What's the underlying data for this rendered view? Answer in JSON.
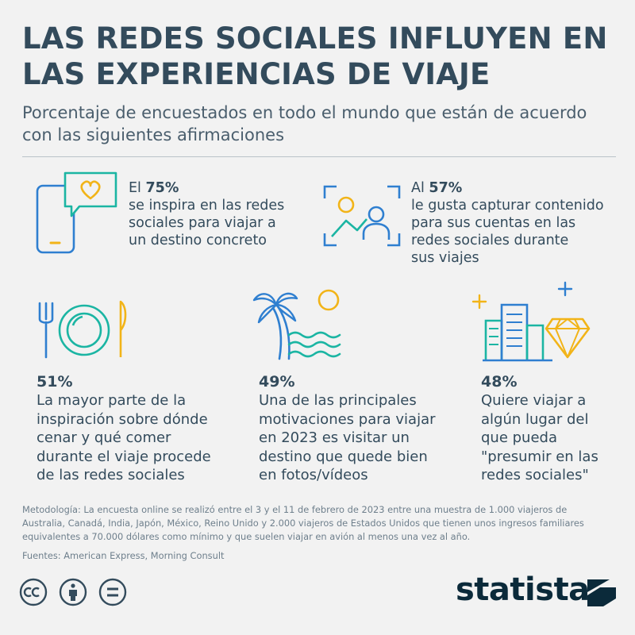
{
  "header": {
    "title_line1": "LAS REDES SOCIALES INFLUYEN EN",
    "title_line2": "LAS EXPERIENCIAS DE VIAJE",
    "subtitle_line1": "Porcentaje de encuestados en todo el mundo que están de acuerdo",
    "subtitle_line2": "con las siguientes afirmaciones"
  },
  "stats": [
    {
      "prefix": "El",
      "value": "75%",
      "lines": [
        "se inspira en las redes",
        "sociales para viajar a",
        "un destino concreto"
      ],
      "icon": "phone-heart-icon"
    },
    {
      "prefix": "Al",
      "value": "57%",
      "lines": [
        "le gusta capturar contenido",
        "para sus cuentas en las",
        "redes sociales durante",
        "sus viajes"
      ],
      "icon": "photo-capture-icon"
    },
    {
      "value": "51%",
      "lines": [
        "La mayor parte de la",
        "inspiración sobre dónde",
        "cenar y qué comer",
        "durante el viaje procede",
        "de las redes sociales"
      ],
      "icon": "plate-cutlery-icon"
    },
    {
      "value": "49%",
      "lines": [
        "Una de las principales",
        "motivaciones para viajar",
        "en 2023 es visitar un",
        "destino que quede bien",
        "en fotos/vídeos"
      ],
      "icon": "palm-beach-icon"
    },
    {
      "value": "48%",
      "lines": [
        "Quiere viajar a",
        "algún lugar del",
        "que pueda",
        "\"presumir en las",
        "redes sociales\""
      ],
      "icon": "buildings-diamond-icon"
    }
  ],
  "chart_data": {
    "type": "table",
    "title": "LAS REDES SOCIALES INFLUYEN EN LAS EXPERIENCIAS DE VIAJE",
    "subtitle": "Porcentaje de encuestados en todo el mundo que están de acuerdo con las siguientes afirmaciones",
    "categories": [
      "se inspira en las redes sociales para viajar a un destino concreto",
      "le gusta capturar contenido para sus cuentas en las redes sociales durante sus viajes",
      "La mayor parte de la inspiración sobre dónde cenar y qué comer durante el viaje procede de las redes sociales",
      "Una de las principales motivaciones para viajar en 2023 es visitar un destino que quede bien en fotos/vídeos",
      "Quiere viajar a algún lugar del que pueda \"presumir en las redes sociales\""
    ],
    "values": [
      75,
      57,
      51,
      49,
      48
    ]
  },
  "footer": {
    "method_line1": "Metodología: La encuesta online se realizó entre el 3 y el 11 de febrero de 2023 entre una muestra de 1.000 viajeros de",
    "method_line2": "Australia, Canadá, India, Japón, México, Reino Unido y 2.000 viajeros de Estados Unidos que tienen unos ingresos familiares",
    "method_line3": "equivalentes a 70.000 dólares como mínimo y que suelen viajar en avión al menos una vez al año.",
    "sources": "Fuentes: American Express, Morning Consult",
    "brand": "statista"
  },
  "colors": {
    "blue": "#2f7fd0",
    "teal": "#1bb5a3",
    "yellow": "#f2b418",
    "text": "#334b5c"
  }
}
